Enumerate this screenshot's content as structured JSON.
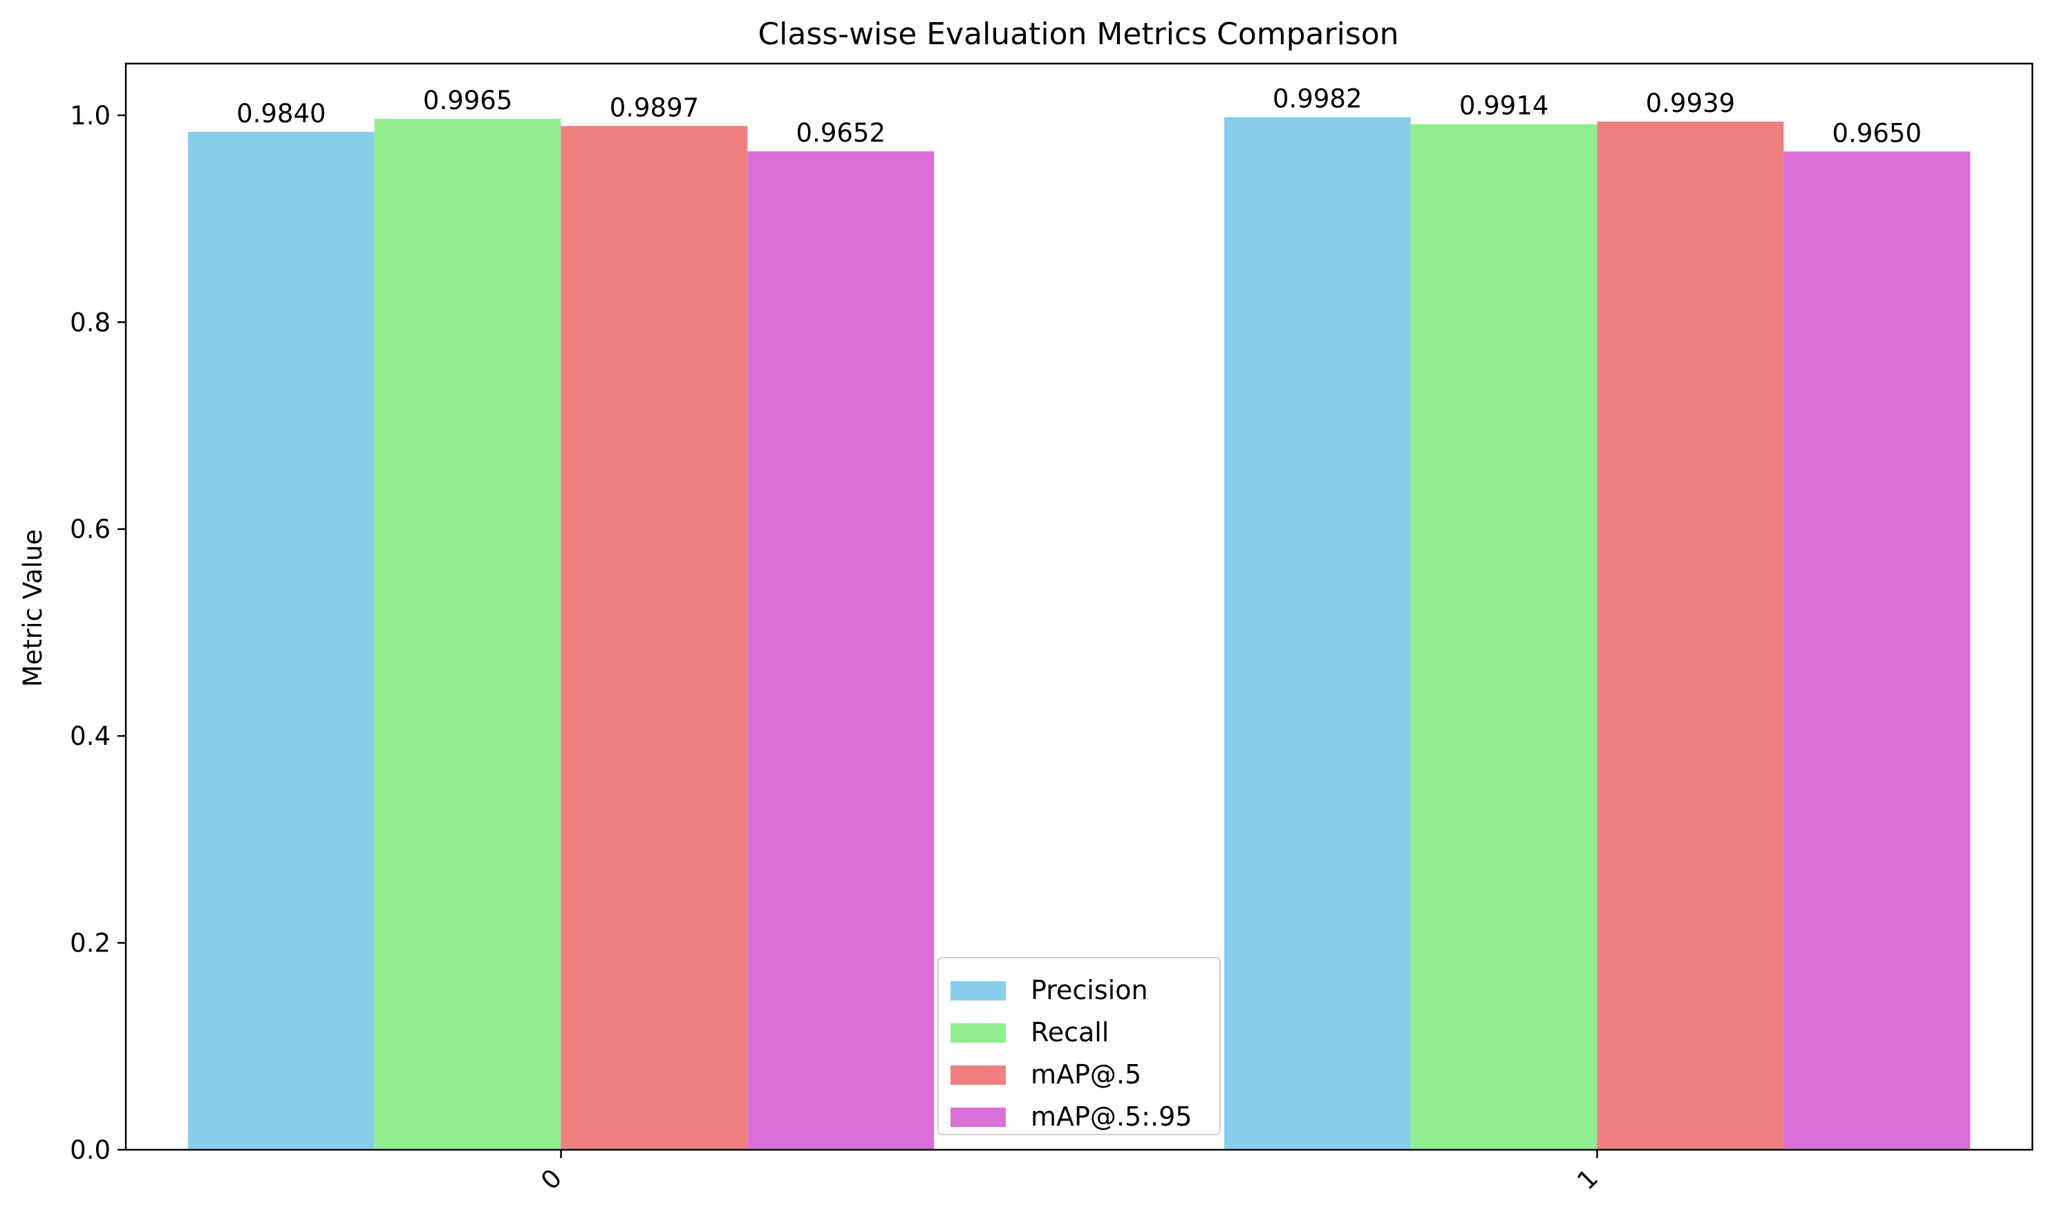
{
  "chart_data": {
    "type": "bar",
    "title": "Class-wise Evaluation Metrics Comparison",
    "xlabel": "",
    "ylabel": "Metric Value",
    "categories": [
      "0",
      "1"
    ],
    "series": [
      {
        "name": "Precision",
        "values": [
          0.984,
          0.9982
        ],
        "labels": [
          "0.9840",
          "0.9982"
        ],
        "color": "#87CEEB"
      },
      {
        "name": "Recall",
        "values": [
          0.9965,
          0.9914
        ],
        "labels": [
          "0.9965",
          "0.9914"
        ],
        "color": "#90EE90"
      },
      {
        "name": "mAP@.5",
        "values": [
          0.9897,
          0.9939
        ],
        "labels": [
          "0.9897",
          "0.9939"
        ],
        "color": "#F08080"
      },
      {
        "name": "mAP@.5:.95",
        "values": [
          0.9652,
          0.965
        ],
        "labels": [
          "0.9652",
          "0.9650"
        ],
        "color": "#DA70D6"
      }
    ],
    "ylim": [
      0,
      1.05
    ],
    "yticks": [
      0.0,
      0.2,
      0.4,
      0.6,
      0.8,
      1.0
    ],
    "ytick_labels": [
      "0.0",
      "0.2",
      "0.4",
      "0.6",
      "0.8",
      "1.0"
    ],
    "xtick_rotation": 45,
    "grid": false,
    "legend_position": "lower-center"
  }
}
